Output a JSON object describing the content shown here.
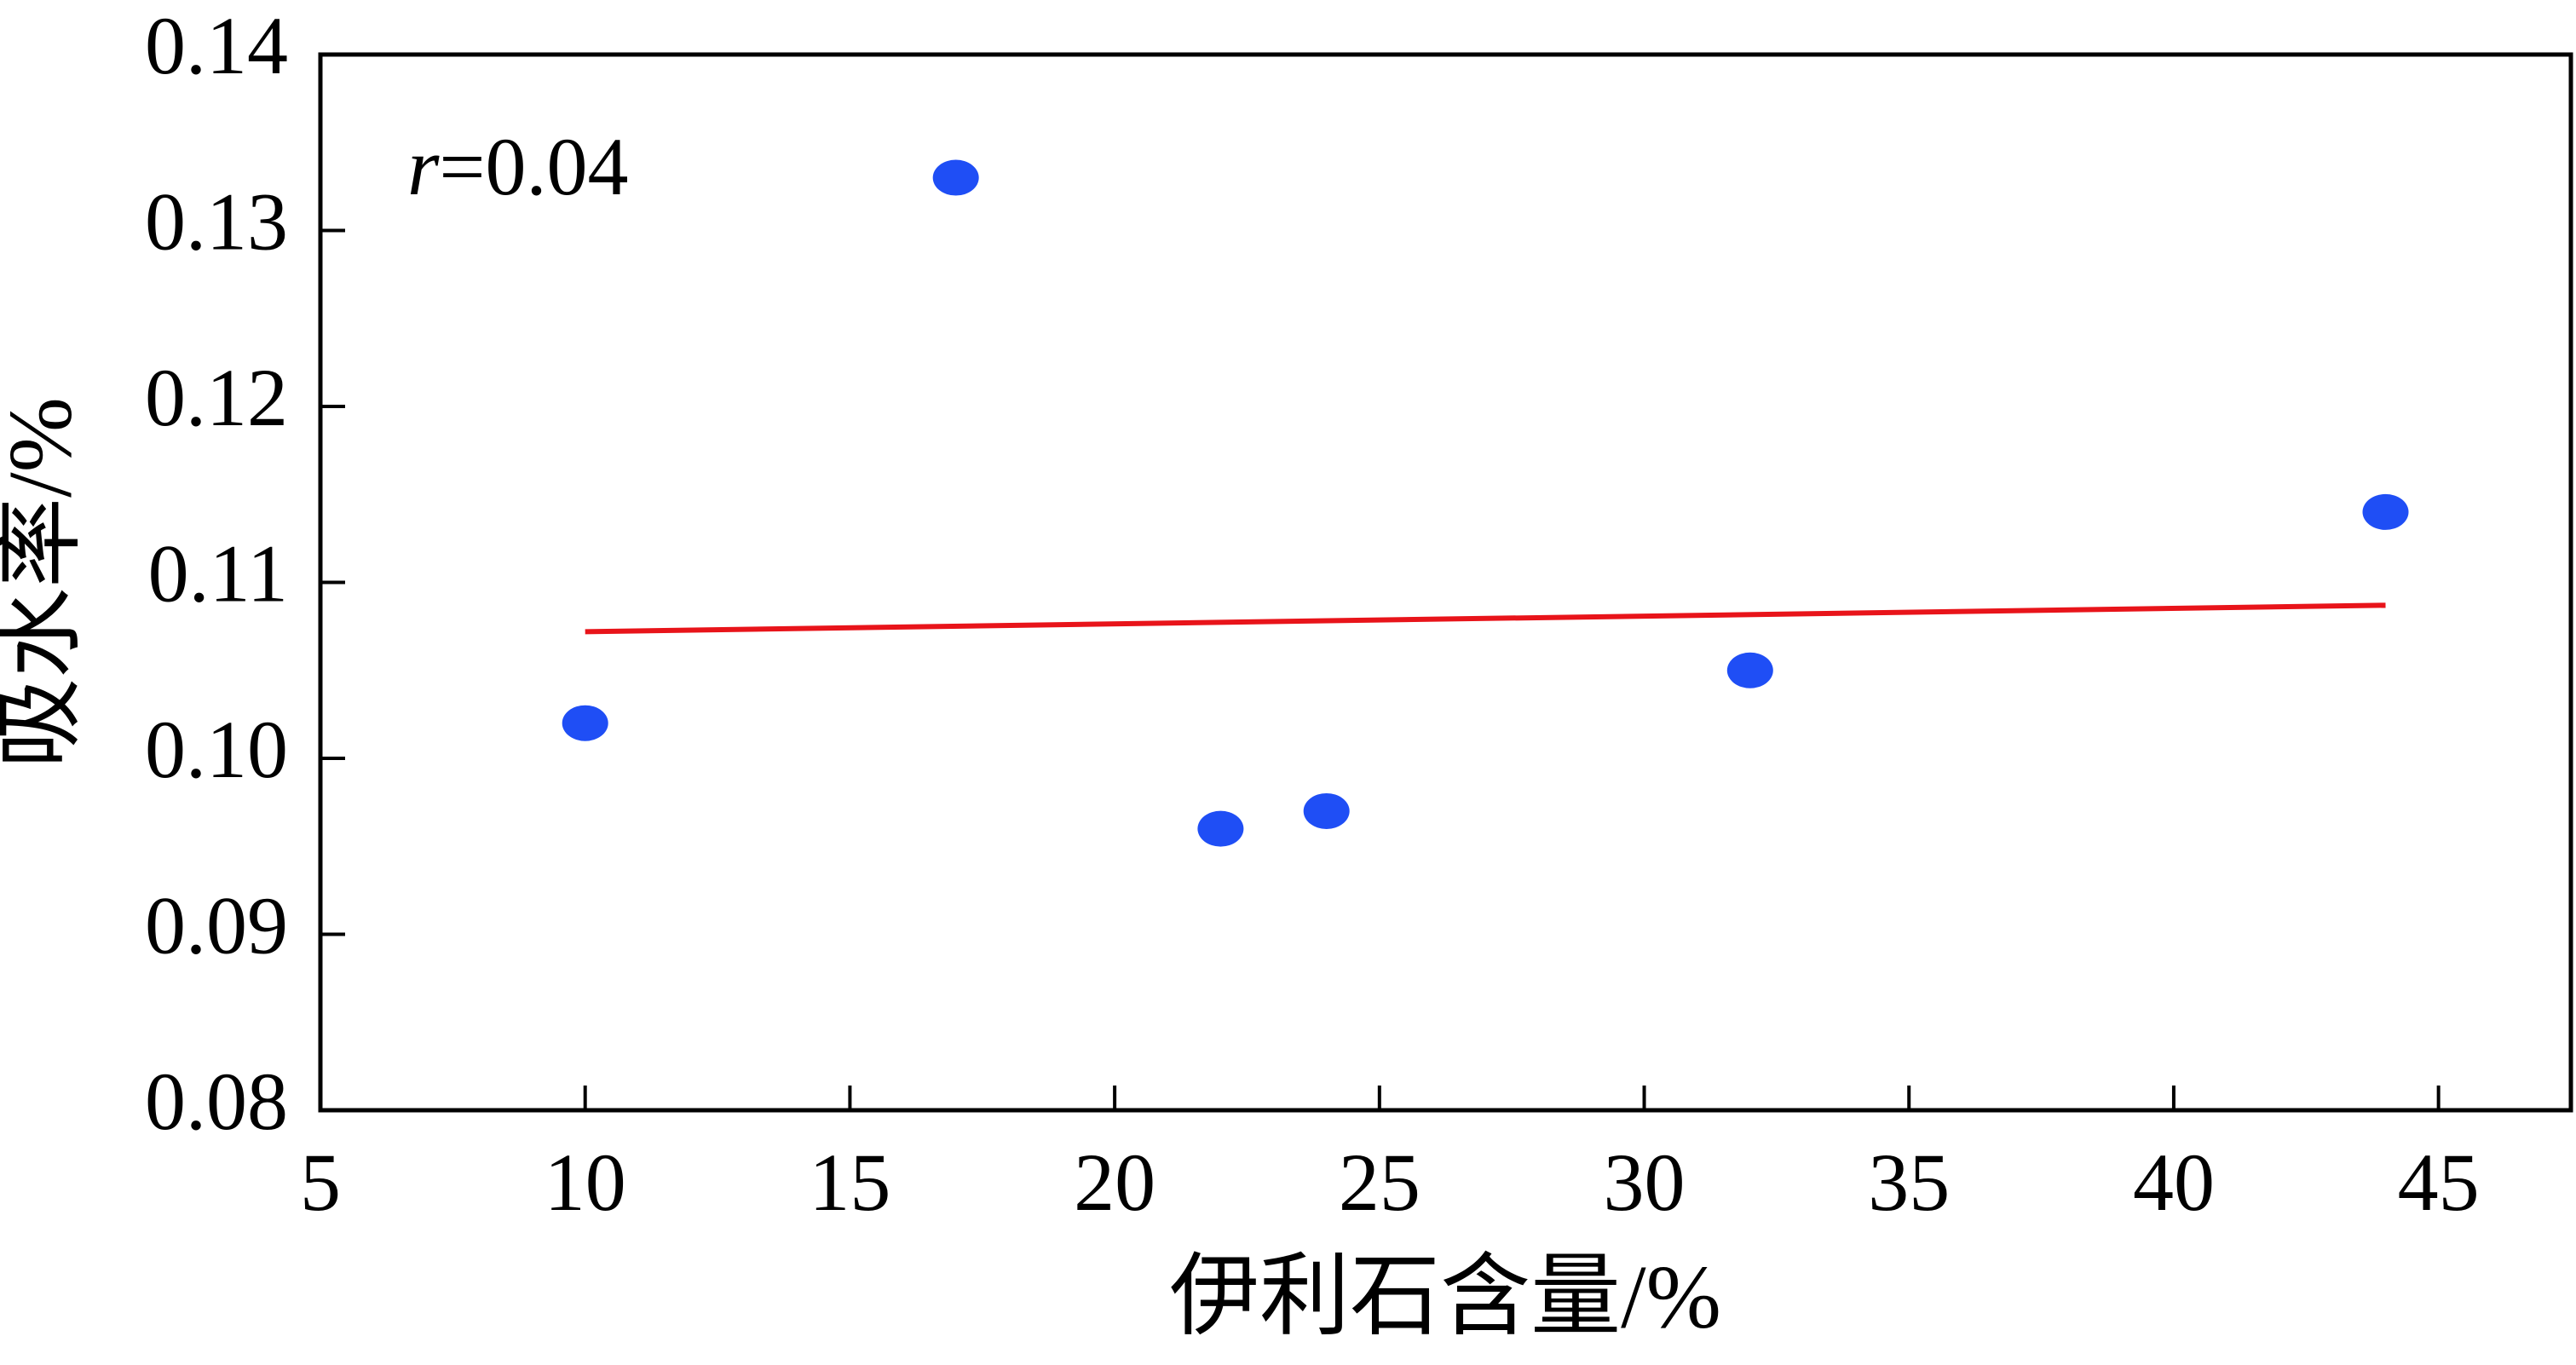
{
  "chart_data": {
    "type": "scatter",
    "x_label": "伊利石含量/%",
    "y_label": "吸水率/%",
    "x": [
      10,
      17,
      22,
      24,
      32,
      44
    ],
    "series": [
      {
        "color": "#1f4ef5",
        "values": [
          0.102,
          0.133,
          0.096,
          0.097,
          0.105,
          0.114
        ]
      }
    ],
    "trendline": {
      "x": [
        10,
        44
      ],
      "values": [
        0.1072,
        0.1087
      ],
      "color": "#e8141a"
    },
    "annotation": {
      "symbol": "r",
      "text": "=0.04"
    },
    "xlim": [
      5,
      47.5
    ],
    "xticks": [
      5,
      10,
      15,
      20,
      25,
      30,
      35,
      40,
      45
    ],
    "ylim": [
      0.08,
      0.14
    ],
    "yticks": [
      {
        "value": 0.08,
        "label": "0.08"
      },
      {
        "value": 0.09,
        "label": "0.09"
      },
      {
        "value": 0.1,
        "label": "0.10"
      },
      {
        "value": 0.11,
        "label": "0.11"
      },
      {
        "value": 0.12,
        "label": "0.12"
      },
      {
        "value": 0.13,
        "label": "0.13"
      },
      {
        "value": 0.14,
        "label": "0.14"
      }
    ],
    "grid": false
  }
}
